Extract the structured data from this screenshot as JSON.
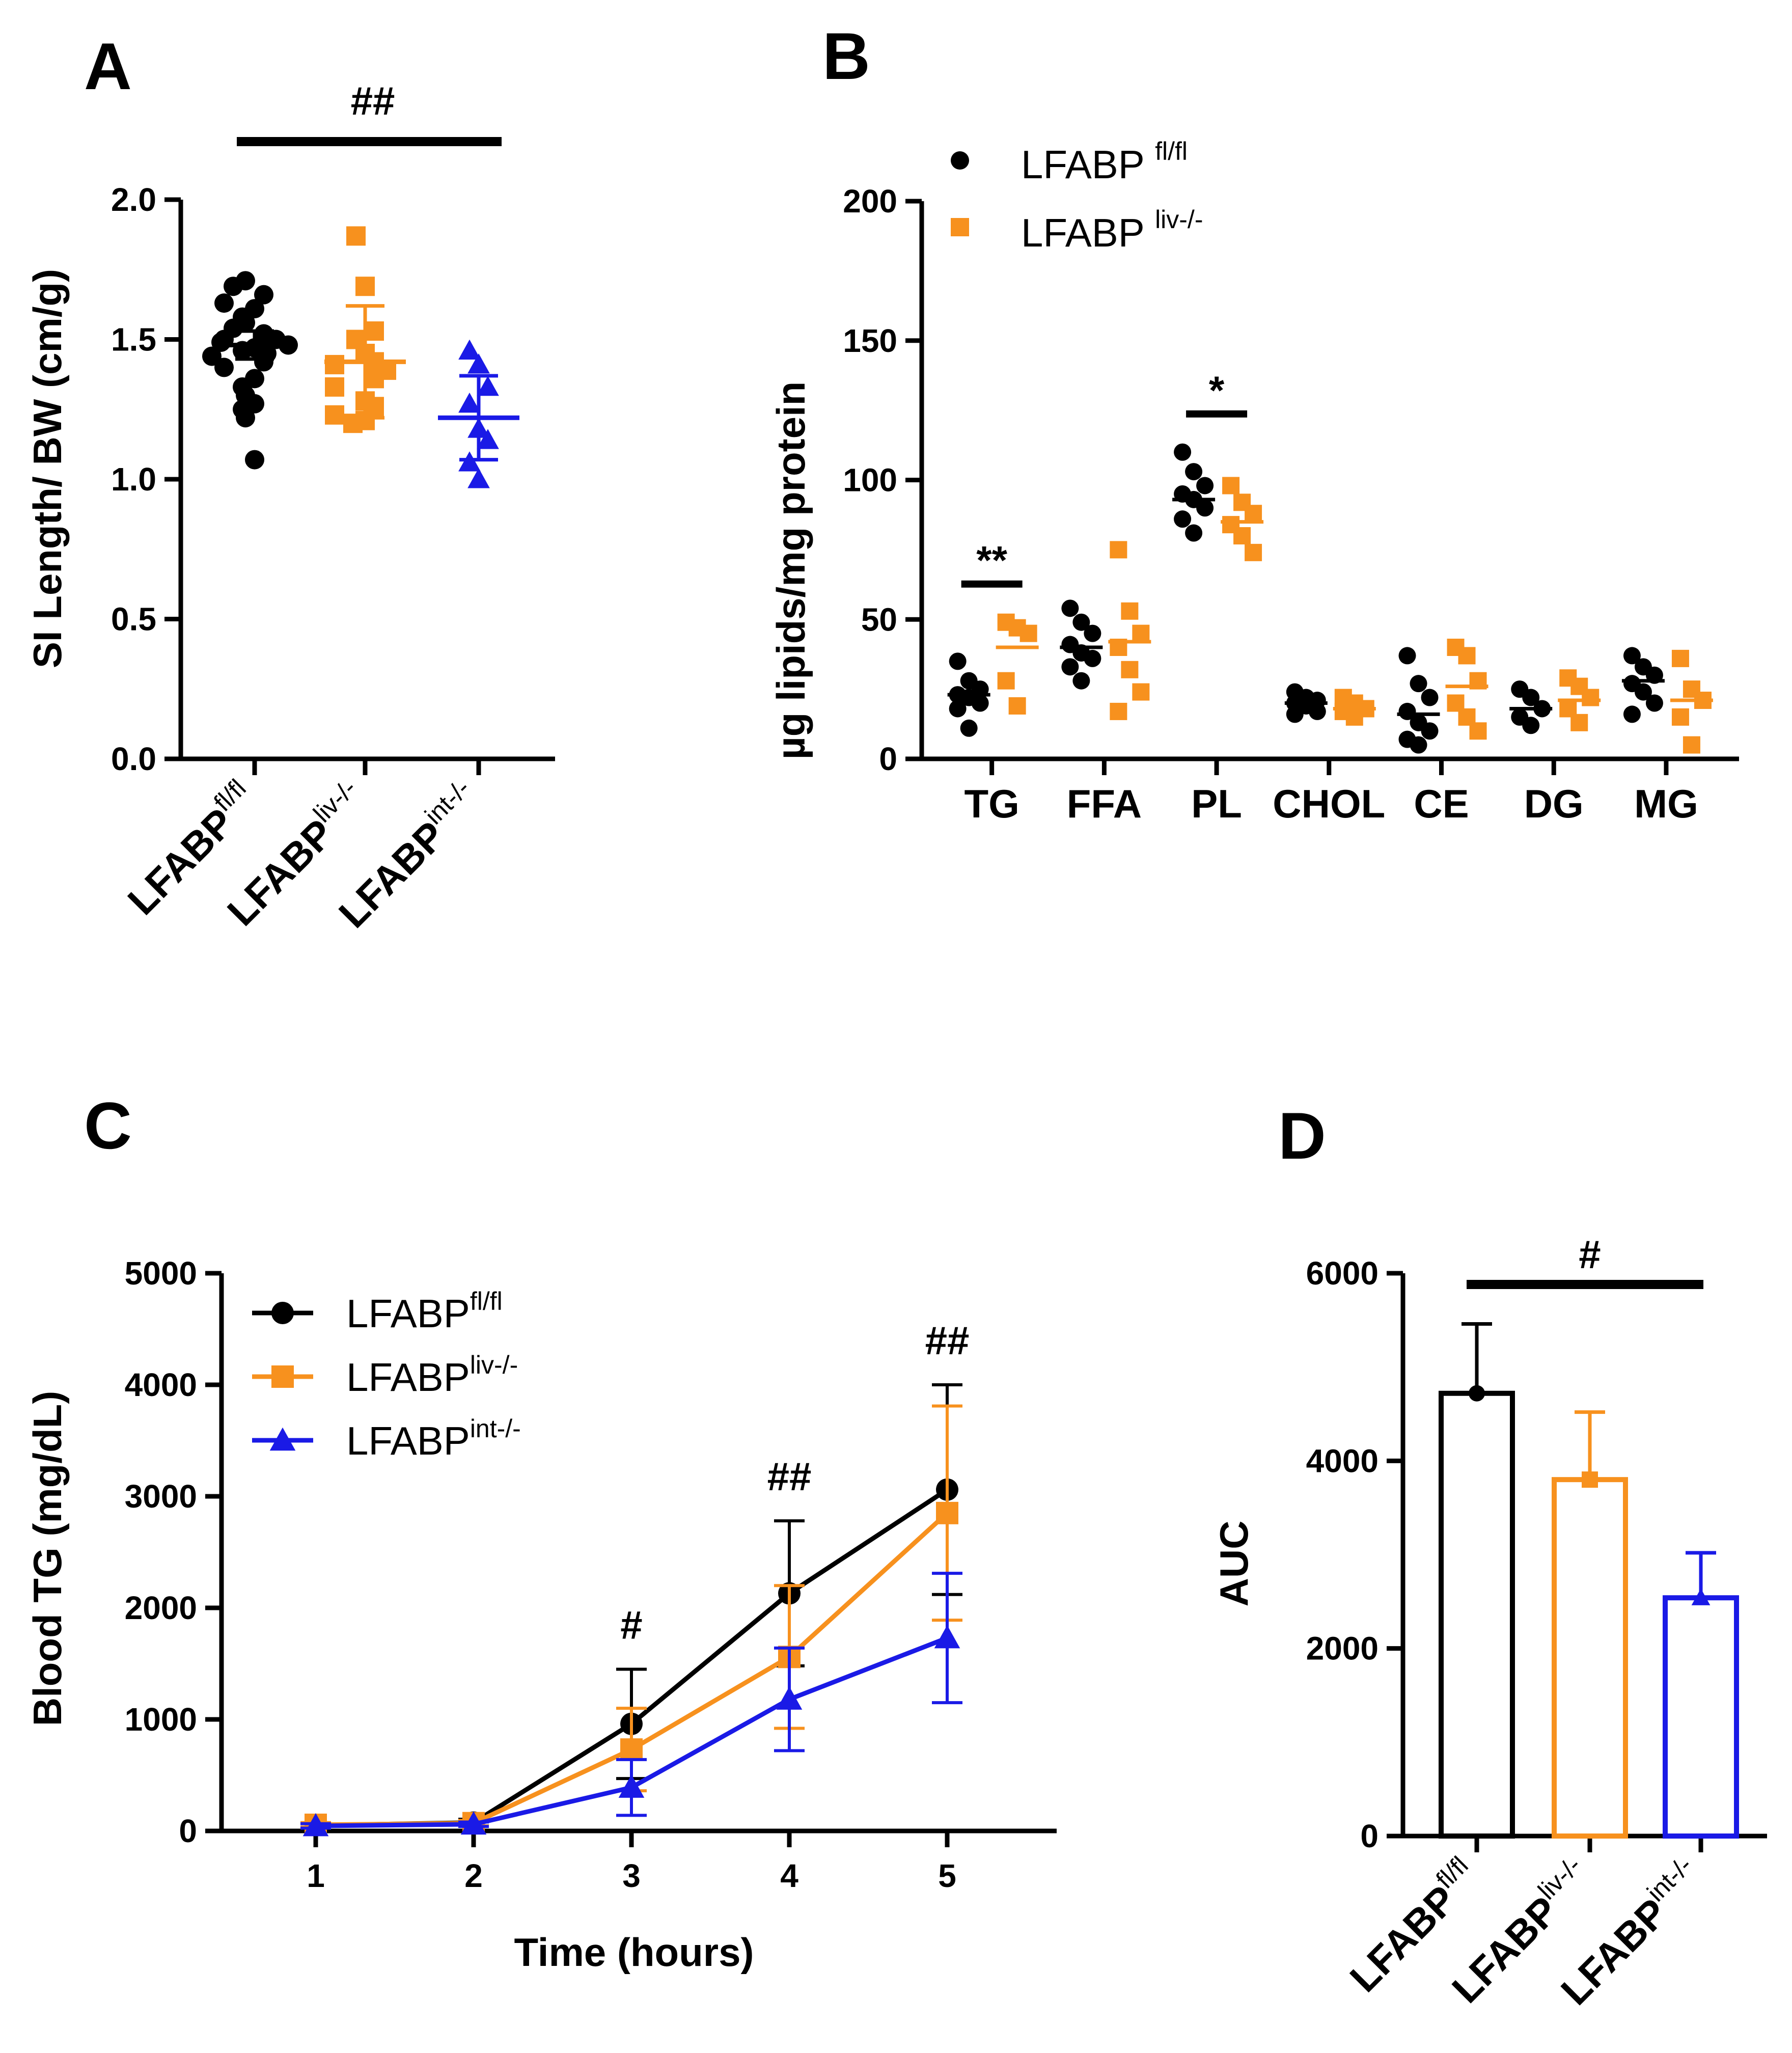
{
  "colors": {
    "fl": "#000000",
    "liv": "#f7911e",
    "int": "#1a1ae6"
  },
  "chart_data": [
    {
      "panel": "A",
      "type": "scatter",
      "ylabel": "SI Length/ BW (cm/g)",
      "ylim": [
        0,
        2.0
      ],
      "yticks": [
        "0.0",
        "0.5",
        "1.0",
        "1.5",
        "2.0"
      ],
      "categories": [
        {
          "base": "LFABP",
          "sup": "fl/fl"
        },
        {
          "base": "LFABP",
          "sup": "liv-/-"
        },
        {
          "base": "LFABP",
          "sup": "int-/-"
        }
      ],
      "series": [
        {
          "name": "LFABP fl/fl",
          "mean": 1.48,
          "sd": 0.05,
          "values": [
            1.71,
            1.69,
            1.66,
            1.63,
            1.61,
            1.58,
            1.56,
            1.54,
            1.52,
            1.5,
            1.5,
            1.49,
            1.48,
            1.47,
            1.46,
            1.45,
            1.44,
            1.42,
            1.4,
            1.36,
            1.33,
            1.3,
            1.27,
            1.25,
            1.22,
            1.07
          ]
        },
        {
          "name": "LFABP liv-/-",
          "mean": 1.42,
          "sd": 0.2,
          "values": [
            1.87,
            1.69,
            1.53,
            1.5,
            1.45,
            1.42,
            1.41,
            1.39,
            1.36,
            1.33,
            1.28,
            1.26,
            1.23,
            1.21,
            1.2
          ]
        },
        {
          "name": "LFABP int-/-",
          "mean": 1.22,
          "sd": 0.15,
          "values": [
            1.46,
            1.41,
            1.33,
            1.27,
            1.18,
            1.14,
            1.06,
            1.0
          ]
        }
      ],
      "significance": "##"
    },
    {
      "panel": "B",
      "type": "scatter",
      "ylabel": "µg lipids/mg protein",
      "ylim": [
        0,
        200
      ],
      "yticks": [
        "0",
        "50",
        "100",
        "150",
        "200"
      ],
      "categories": [
        "TG",
        "FFA",
        "PL",
        "CHOL",
        "CE",
        "DG",
        "MG"
      ],
      "legend": [
        {
          "base": "LFABP ",
          "sup": "fl/fl"
        },
        {
          "base": "LFABP ",
          "sup": "liv-/-"
        }
      ],
      "series": [
        {
          "name": "LFABP fl/fl",
          "mean": [
            23,
            40,
            93,
            20,
            16,
            18,
            28
          ],
          "values": [
            [
              35,
              28,
              25,
              23,
              22,
              20,
              18,
              11
            ],
            [
              54,
              49,
              45,
              41,
              38,
              36,
              33,
              28
            ],
            [
              110,
              103,
              98,
              95,
              93,
              90,
              86,
              81
            ],
            [
              24,
              22,
              21,
              20,
              19,
              17,
              16
            ],
            [
              37,
              27,
              22,
              17,
              13,
              10,
              7,
              5
            ],
            [
              25,
              22,
              18,
              15,
              12
            ],
            [
              37,
              33,
              30,
              27,
              24,
              20,
              16
            ]
          ]
        },
        {
          "name": "LFABP liv-/-",
          "mean": [
            40,
            42,
            85,
            18,
            26,
            21,
            21
          ],
          "values": [
            [
              49,
              47,
              45,
              28,
              19
            ],
            [
              75,
              53,
              45,
              40,
              32,
              24,
              17
            ],
            [
              98,
              92,
              88,
              84,
              80,
              74
            ],
            [
              22,
              20,
              18,
              17,
              15
            ],
            [
              40,
              37,
              28,
              20,
              15,
              10
            ],
            [
              29,
              26,
              22,
              18,
              13
            ],
            [
              36,
              25,
              21,
              15,
              5
            ]
          ]
        }
      ],
      "significance": [
        {
          "category": "TG",
          "label": "**"
        },
        {
          "category": "PL",
          "label": "*"
        }
      ]
    },
    {
      "panel": "C",
      "type": "line",
      "xlabel": "Time (hours)",
      "ylabel": "Blood TG (mg/dL)",
      "x": [
        1,
        2,
        3,
        4,
        5
      ],
      "xticks": [
        "1",
        "2",
        "3",
        "4",
        "5"
      ],
      "ylim": [
        0,
        5000
      ],
      "yticks": [
        "0",
        "1000",
        "2000",
        "3000",
        "4000",
        "5000"
      ],
      "series": [
        {
          "name": "LFABP fl/fl",
          "label_base": "LFABP",
          "label_sup": "fl/fl",
          "values": [
            50,
            75,
            960,
            2130,
            3060
          ],
          "err": [
            20,
            30,
            490,
            650,
            940
          ]
        },
        {
          "name": "LFABP liv-/-",
          "label_base": "LFABP",
          "label_sup": "liv-/-",
          "values": [
            55,
            70,
            730,
            1560,
            2850
          ],
          "err": [
            20,
            25,
            370,
            640,
            960
          ]
        },
        {
          "name": "LFABP int-/-",
          "label_base": "LFABP",
          "label_sup": "int-/-",
          "values": [
            45,
            60,
            390,
            1180,
            1730
          ],
          "err": [
            20,
            20,
            250,
            460,
            580
          ]
        }
      ],
      "annotations": [
        {
          "x": 3,
          "label": "#"
        },
        {
          "x": 4,
          "label": "##"
        },
        {
          "x": 5,
          "label": "##"
        }
      ]
    },
    {
      "panel": "D",
      "type": "bar",
      "ylabel": "AUC",
      "ylim": [
        0,
        6000
      ],
      "yticks": [
        "0",
        "2000",
        "4000",
        "6000"
      ],
      "categories": [
        {
          "base": "LFABP",
          "sup": "fl/fl"
        },
        {
          "base": "LFABP",
          "sup": "liv-/-"
        },
        {
          "base": "LFABP",
          "sup": "int-/-"
        }
      ],
      "values": [
        4720,
        3800,
        2540
      ],
      "err": [
        740,
        720,
        480
      ],
      "significance": "#"
    }
  ]
}
